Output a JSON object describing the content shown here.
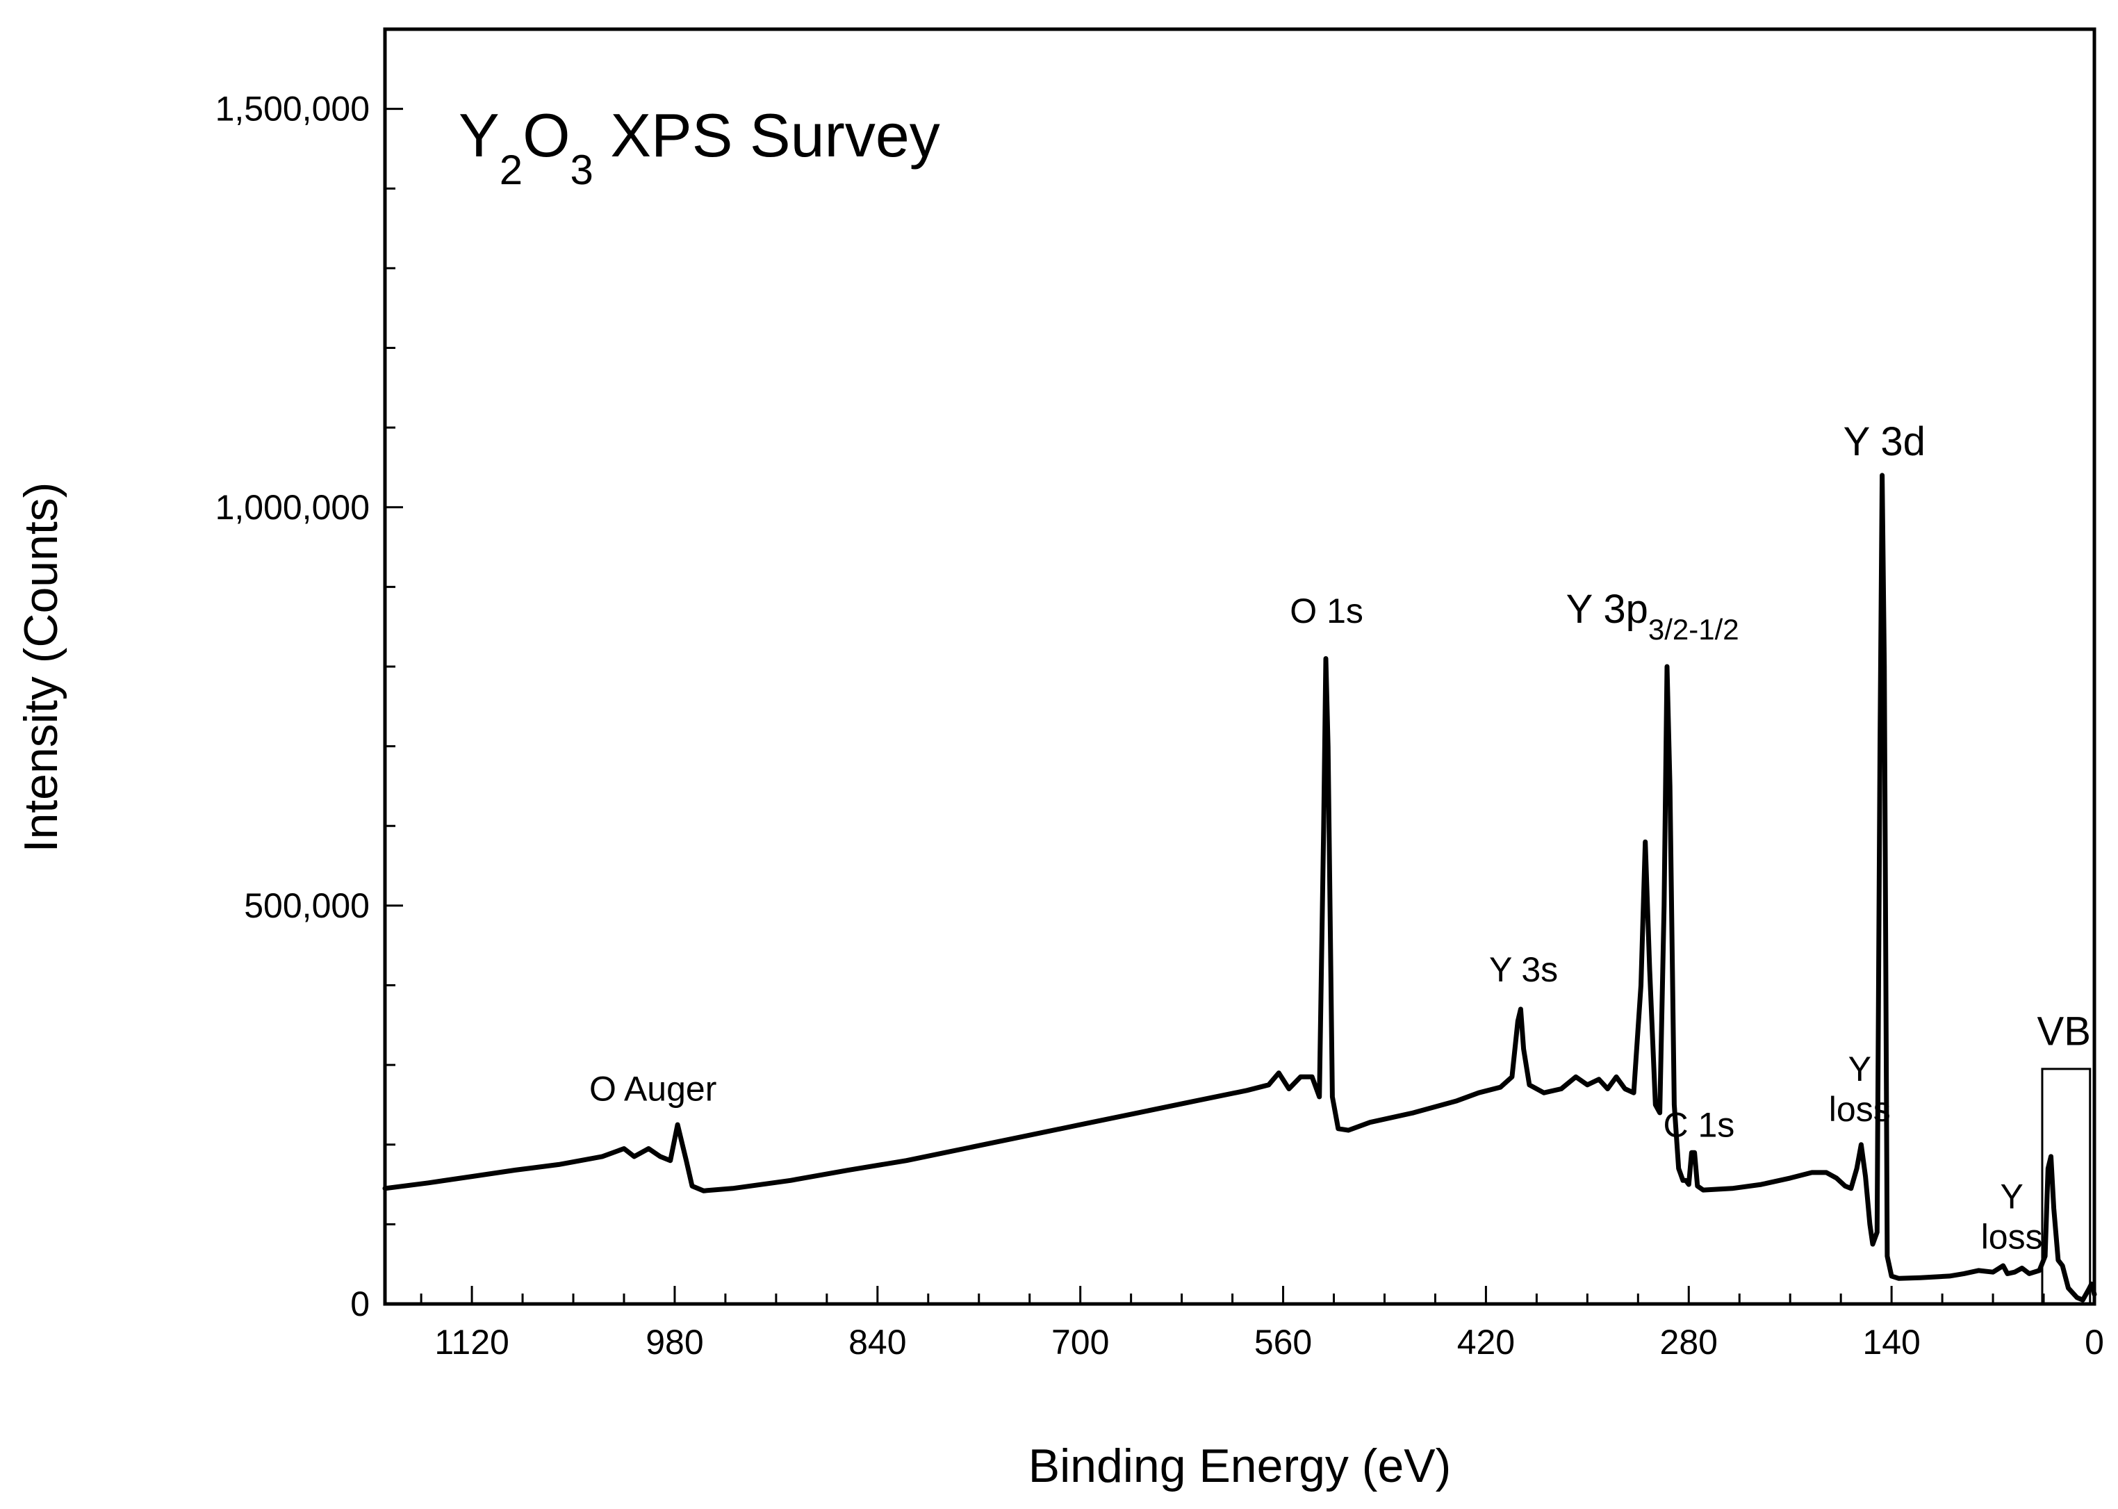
{
  "chart_data": {
    "type": "line",
    "title_parts": [
      "Y",
      "2",
      "O",
      "3",
      " XPS Survey"
    ],
    "xlabel": "Binding Energy (eV)",
    "ylabel": "Intensity (Counts)",
    "xlim": [
      1180,
      0
    ],
    "ylim": [
      0,
      1600000
    ],
    "xticks": [
      1120,
      980,
      840,
      700,
      560,
      420,
      280,
      140,
      0
    ],
    "xtick_labels": [
      "1120",
      "980",
      "840",
      "700",
      "560",
      "420",
      "280",
      "140",
      "0"
    ],
    "yticks": [
      0,
      500000,
      1000000,
      1500000
    ],
    "ytick_labels": [
      "0",
      "500,000",
      "1,000,000",
      "1,500,000"
    ],
    "grid": false,
    "series": [
      {
        "name": "Y2O3 XPS survey",
        "color": "#000000",
        "points": [
          [
            1180,
            145000
          ],
          [
            1150,
            152000
          ],
          [
            1120,
            160000
          ],
          [
            1090,
            168000
          ],
          [
            1060,
            175000
          ],
          [
            1030,
            185000
          ],
          [
            1015,
            195000
          ],
          [
            1008,
            185000
          ],
          [
            998,
            195000
          ],
          [
            990,
            185000
          ],
          [
            983,
            180000
          ],
          [
            978,
            225000
          ],
          [
            972,
            180000
          ],
          [
            968,
            148000
          ],
          [
            960,
            142000
          ],
          [
            940,
            145000
          ],
          [
            900,
            155000
          ],
          [
            860,
            168000
          ],
          [
            820,
            180000
          ],
          [
            780,
            195000
          ],
          [
            740,
            210000
          ],
          [
            700,
            225000
          ],
          [
            660,
            240000
          ],
          [
            620,
            255000
          ],
          [
            585,
            268000
          ],
          [
            570,
            275000
          ],
          [
            563,
            290000
          ],
          [
            556,
            270000
          ],
          [
            548,
            285000
          ],
          [
            540,
            285000
          ],
          [
            535,
            260000
          ],
          [
            532,
            600000
          ],
          [
            530.5,
            810000
          ],
          [
            529,
            700000
          ],
          [
            526,
            260000
          ],
          [
            522,
            220000
          ],
          [
            515,
            218000
          ],
          [
            500,
            228000
          ],
          [
            470,
            240000
          ],
          [
            440,
            255000
          ],
          [
            425,
            265000
          ],
          [
            410,
            272000
          ],
          [
            402,
            285000
          ],
          [
            398,
            355000
          ],
          [
            396,
            370000
          ],
          [
            394,
            320000
          ],
          [
            390,
            275000
          ],
          [
            380,
            265000
          ],
          [
            368,
            270000
          ],
          [
            358,
            285000
          ],
          [
            350,
            275000
          ],
          [
            342,
            282000
          ],
          [
            336,
            270000
          ],
          [
            330,
            285000
          ],
          [
            324,
            270000
          ],
          [
            318,
            265000
          ],
          [
            313,
            400000
          ],
          [
            310,
            580000
          ],
          [
            307,
            420000
          ],
          [
            303,
            250000
          ],
          [
            300,
            240000
          ],
          [
            297,
            500000
          ],
          [
            295,
            800000
          ],
          [
            293,
            650000
          ],
          [
            290,
            250000
          ],
          [
            287,
            170000
          ],
          [
            284,
            155000
          ],
          [
            282,
            155000
          ],
          [
            280,
            150000
          ],
          [
            278,
            190000
          ],
          [
            276,
            190000
          ],
          [
            274,
            148000
          ],
          [
            270,
            143000
          ],
          [
            250,
            145000
          ],
          [
            230,
            150000
          ],
          [
            210,
            158000
          ],
          [
            195,
            165000
          ],
          [
            185,
            165000
          ],
          [
            178,
            158000
          ],
          [
            172,
            148000
          ],
          [
            168,
            145000
          ],
          [
            164,
            170000
          ],
          [
            161,
            200000
          ],
          [
            158,
            160000
          ],
          [
            155,
            100000
          ],
          [
            153,
            75000
          ],
          [
            150,
            90000
          ],
          [
            148,
            700000
          ],
          [
            146.5,
            1040000
          ],
          [
            145,
            800000
          ],
          [
            143,
            60000
          ],
          [
            140,
            35000
          ],
          [
            135,
            32000
          ],
          [
            120,
            33000
          ],
          [
            100,
            35000
          ],
          [
            90,
            38000
          ],
          [
            80,
            42000
          ],
          [
            70,
            40000
          ],
          [
            63,
            48000
          ],
          [
            60,
            38000
          ],
          [
            55,
            40000
          ],
          [
            50,
            45000
          ],
          [
            45,
            38000
          ],
          [
            38,
            42000
          ],
          [
            34,
            60000
          ],
          [
            32,
            170000
          ],
          [
            30,
            185000
          ],
          [
            28,
            120000
          ],
          [
            25,
            55000
          ],
          [
            22,
            48000
          ],
          [
            18,
            20000
          ],
          [
            12,
            8000
          ],
          [
            8,
            5000
          ],
          [
            4,
            18000
          ],
          [
            2,
            25000
          ],
          [
            0,
            12000
          ]
        ]
      }
    ],
    "annotations": [
      {
        "parts": [
          "O Auger"
        ],
        "x": 995,
        "y": 255000,
        "style": "normal"
      },
      {
        "parts": [
          "O 1s"
        ],
        "x": 530,
        "y": 855000,
        "style": "normal"
      },
      {
        "parts": [
          "Y 3s"
        ],
        "x": 394,
        "y": 405000,
        "style": "normal"
      },
      {
        "parts": [
          "Y 3p",
          "3/2-1/2"
        ],
        "x": 305,
        "y": 855000,
        "style": "big"
      },
      {
        "parts": [
          "C 1s"
        ],
        "x": 273,
        "y": 210000,
        "style": "normal"
      },
      {
        "parts": [
          "Y",
          "loss"
        ],
        "x": 162,
        "y": 280000,
        "style": "stack"
      },
      {
        "parts": [
          "Y 3d"
        ],
        "x": 145,
        "y": 1065000,
        "style": "big"
      },
      {
        "parts": [
          "Y",
          "loss"
        ],
        "x": 57,
        "y": 120000,
        "style": "stack"
      },
      {
        "parts": [
          "VB"
        ],
        "x": 21,
        "y": 325000,
        "style": "big"
      }
    ],
    "highlight_box": {
      "x_from": 36,
      "x_to": 3,
      "y_from": 0,
      "y_to": 295000,
      "label": "VB"
    }
  }
}
